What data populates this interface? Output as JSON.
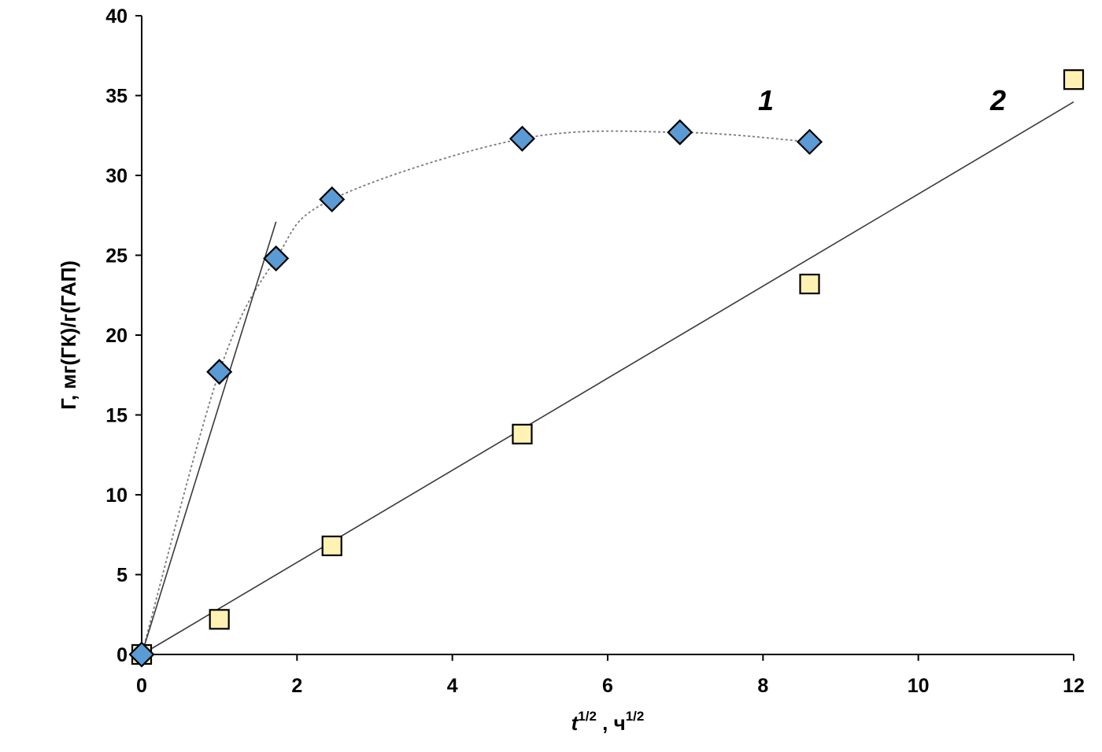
{
  "chart_data": {
    "type": "scatter",
    "xlabel": {
      "base": "t",
      "sup": "1/2",
      "sep": " , ",
      "unit_base": "ч",
      "unit_sup": "1/2"
    },
    "ylabel": "Г, мг(ГК)/г(ГАП)",
    "xlim": [
      0,
      12
    ],
    "ylim": [
      0,
      40
    ],
    "x_ticks": [
      0,
      2,
      4,
      6,
      8,
      10,
      12
    ],
    "y_ticks": [
      0,
      5,
      10,
      15,
      20,
      25,
      30,
      35,
      40
    ],
    "grid": false,
    "series": [
      {
        "name": "1",
        "marker": "diamond",
        "color": "#5b9bd5",
        "x": [
          0,
          1,
          1.73,
          2.45,
          4.9,
          6.93,
          8.6
        ],
        "y": [
          0,
          17.7,
          24.8,
          28.5,
          32.3,
          32.7,
          32.1
        ],
        "trend": "smooth-dotted",
        "initial_slope_line": {
          "x": [
            0,
            1.73
          ],
          "y": [
            0,
            27.1
          ]
        }
      },
      {
        "name": "2",
        "marker": "square",
        "color": "#fff2b3",
        "x": [
          0,
          1,
          2.45,
          4.9,
          8.6,
          12
        ],
        "y": [
          0,
          2.2,
          6.8,
          13.8,
          23.2,
          36.0
        ],
        "trend": "linear",
        "fit_line": {
          "x": [
            0,
            12
          ],
          "y": [
            0,
            34.6
          ]
        }
      }
    ]
  }
}
